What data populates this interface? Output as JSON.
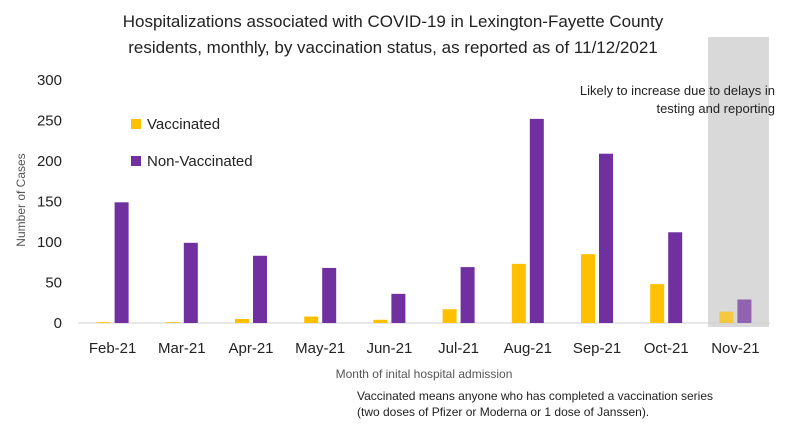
{
  "chart_data": {
    "type": "bar",
    "title_lines": [
      "Hospitalizations associated with COVID-19 in Lexington-Fayette County",
      "residents, monthly, by vaccination status, as reported as of  11/12/2021"
    ],
    "xlabel": "Month of inital hospital admission",
    "ylabel": "Number of Cases",
    "ylim": [
      0,
      300
    ],
    "yticks": [
      0,
      50,
      100,
      150,
      200,
      250,
      300
    ],
    "grid": false,
    "legend_position": "top-left",
    "categories": [
      "Feb-21",
      "Mar-21",
      "Apr-21",
      "May-21",
      "Jun-21",
      "Jul-21",
      "Aug-21",
      "Sep-21",
      "Oct-21",
      "Nov-21"
    ],
    "series": [
      {
        "name": "Vaccinated",
        "color": "#FFC000",
        "values": [
          1,
          1,
          5,
          8,
          4,
          17,
          73,
          85,
          48,
          14
        ]
      },
      {
        "name": "Non-Vaccinated",
        "color": "#7030A0",
        "values": [
          149,
          99,
          83,
          68,
          36,
          69,
          252,
          209,
          112,
          29
        ]
      }
    ],
    "highlight": {
      "category": "Nov-21",
      "color": "#D9D9D9",
      "note_lines": [
        "Likely to increase due to delays in",
        "testing and reporting"
      ]
    },
    "footnote_lines": [
      "Vaccinated means anyone who has completed a vaccination series",
      "(two doses of Pfizer or Moderna or 1 dose of Janssen)."
    ]
  }
}
